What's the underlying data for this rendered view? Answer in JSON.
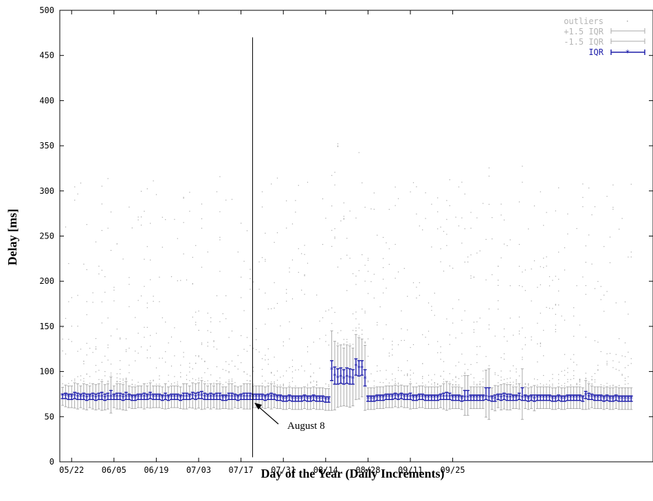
{
  "chart_data": {
    "type": "boxplot",
    "xlabel": "Day of the Year (Daily Increments)",
    "ylabel": "Delay [ms]",
    "ylim": [
      0,
      500
    ],
    "yticks": [
      0,
      50,
      100,
      150,
      200,
      250,
      300,
      350,
      400,
      450,
      500
    ],
    "x_tick_labels": [
      "05/22",
      "06/05",
      "06/19",
      "07/03",
      "07/17",
      "07/31",
      "08/14",
      "08/28",
      "09/11",
      "09/25"
    ],
    "legend": {
      "placement": "top-right",
      "entries": [
        "outliers",
        "+1.5 IQR",
        "-1.5 IQR",
        "IQR"
      ]
    },
    "annotation": {
      "text": "August 8",
      "target_x_label": "07/03"
    },
    "colors": {
      "iqr": "#1a1aa8",
      "whisker": "#aaaaaa",
      "outliers": "#a8a8a8",
      "axis": "#000000"
    },
    "x_day_labels": {
      "first": "05/22",
      "tick_interval_days": 14,
      "description_days_before_first_tick": 0
    },
    "series": [
      {
        "name": "IQR",
        "medians": [
          73,
          73,
          72,
          72,
          73,
          72,
          72,
          72,
          71,
          72,
          72,
          71,
          72,
          72,
          71,
          72,
          72,
          72,
          72,
          72,
          71,
          72,
          72,
          71,
          71,
          72,
          72,
          72,
          72,
          73,
          72,
          72,
          72,
          71,
          72,
          71,
          72,
          72,
          72,
          71,
          72,
          72,
          72,
          73,
          72,
          73,
          73,
          72,
          72,
          72,
          72,
          72,
          72,
          71,
          71,
          72,
          72,
          72,
          71,
          72,
          72,
          72,
          72,
          72,
          72,
          72,
          72,
          71,
          72,
          72,
          72,
          71,
          71,
          70,
          70,
          71,
          70,
          70,
          70,
          70,
          71,
          70,
          70,
          71,
          70,
          70,
          70,
          69,
          69,
          102,
          95,
          93,
          94,
          92,
          94,
          93,
          92,
          106,
          104,
          104,
          92,
          70,
          70,
          70,
          71,
          71,
          71,
          72,
          72,
          72,
          73,
          72,
          73,
          72,
          72,
          72,
          71,
          71,
          72,
          72,
          71,
          71,
          71,
          71,
          71,
          72,
          72,
          72,
          72,
          71,
          71,
          71,
          70,
          71,
          71,
          71,
          71,
          71,
          71,
          71,
          72,
          71,
          70,
          70,
          72,
          71,
          72,
          71,
          71,
          71,
          71,
          72,
          71,
          71,
          70,
          71,
          70,
          71,
          71,
          71,
          71,
          71,
          70,
          70,
          71,
          70,
          70,
          71,
          71,
          71,
          71,
          71,
          70,
          74,
          72,
          72,
          71,
          71,
          71,
          70,
          71,
          70,
          70,
          71,
          70,
          70,
          70,
          70,
          70
        ],
        "q3": [
          75,
          76,
          75,
          75,
          77,
          76,
          75,
          76,
          75,
          75,
          76,
          75,
          76,
          77,
          75,
          76,
          79,
          75,
          76,
          76,
          75,
          77,
          75,
          74,
          74,
          75,
          75,
          76,
          75,
          77,
          75,
          75,
          75,
          74,
          76,
          74,
          75,
          75,
          75,
          74,
          76,
          76,
          75,
          77,
          76,
          77,
          78,
          76,
          75,
          76,
          75,
          76,
          76,
          74,
          74,
          76,
          76,
          75,
          74,
          75,
          76,
          76,
          76,
          75,
          75,
          75,
          75,
          74,
          75,
          76,
          75,
          74,
          74,
          73,
          73,
          74,
          73,
          73,
          73,
          73,
          74,
          73,
          73,
          74,
          73,
          73,
          73,
          72,
          72,
          112,
          105,
          103,
          104,
          102,
          104,
          103,
          102,
          114,
          112,
          112,
          102,
          73,
          73,
          73,
          74,
          74,
          74,
          75,
          75,
          75,
          76,
          75,
          76,
          75,
          75,
          76,
          74,
          74,
          75,
          75,
          74,
          74,
          74,
          74,
          74,
          75,
          76,
          77,
          76,
          74,
          74,
          74,
          73,
          79,
          79,
          74,
          74,
          74,
          74,
          74,
          82,
          82,
          73,
          74,
          75,
          75,
          76,
          75,
          75,
          74,
          74,
          76,
          82,
          74,
          73,
          74,
          74,
          74,
          74,
          74,
          74,
          74,
          73,
          73,
          74,
          73,
          73,
          74,
          74,
          74,
          74,
          74,
          73,
          78,
          76,
          75,
          74,
          74,
          74,
          73,
          74,
          73,
          73,
          74,
          73,
          73,
          73,
          73,
          73
        ],
        "q1": [
          70,
          70,
          69,
          69,
          70,
          69,
          69,
          69,
          68,
          69,
          69,
          68,
          69,
          69,
          68,
          69,
          69,
          69,
          69,
          69,
          68,
          69,
          69,
          68,
          68,
          69,
          69,
          69,
          69,
          70,
          69,
          69,
          69,
          68,
          69,
          68,
          69,
          69,
          69,
          68,
          69,
          69,
          69,
          70,
          69,
          70,
          70,
          69,
          69,
          69,
          69,
          69,
          69,
          68,
          68,
          69,
          69,
          69,
          68,
          69,
          69,
          69,
          69,
          69,
          69,
          69,
          69,
          68,
          69,
          69,
          69,
          68,
          68,
          67,
          67,
          68,
          67,
          67,
          67,
          67,
          68,
          67,
          67,
          68,
          67,
          67,
          67,
          66,
          66,
          90,
          86,
          86,
          87,
          86,
          87,
          86,
          86,
          96,
          95,
          96,
          84,
          67,
          67,
          67,
          68,
          68,
          68,
          69,
          69,
          69,
          70,
          69,
          70,
          69,
          69,
          69,
          68,
          68,
          69,
          69,
          68,
          68,
          68,
          68,
          68,
          69,
          69,
          69,
          69,
          68,
          68,
          68,
          67,
          68,
          68,
          68,
          68,
          68,
          68,
          68,
          69,
          68,
          67,
          67,
          69,
          68,
          69,
          68,
          68,
          68,
          68,
          69,
          68,
          68,
          67,
          68,
          67,
          68,
          68,
          68,
          68,
          68,
          67,
          67,
          68,
          67,
          67,
          68,
          68,
          68,
          68,
          68,
          67,
          70,
          69,
          69,
          68,
          68,
          68,
          67,
          68,
          67,
          67,
          68,
          67,
          67,
          67,
          67,
          67
        ]
      }
    ]
  },
  "legend_labels": {
    "outliers": "outliers",
    "plus_iqr": "+1.5 IQR",
    "minus_iqr": "-1.5 IQR",
    "iqr": "IQR"
  },
  "axis_titles": {
    "x": "Day of the Year (Daily Increments)",
    "y": "Delay [ms]"
  },
  "annotation_text": "August 8"
}
